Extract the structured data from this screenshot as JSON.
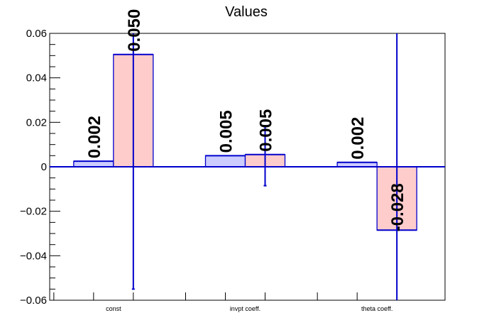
{
  "chart_data": {
    "type": "bar",
    "title": "Values",
    "xlabel": "",
    "ylabel": "",
    "categories": [
      "const",
      "invpt coeff.",
      "theta coeff."
    ],
    "ylim": [
      -0.06,
      0.06
    ],
    "yticks": [
      -0.06,
      -0.04,
      -0.02,
      0,
      0.02,
      0.04,
      0.06
    ],
    "ytick_labels": [
      "−0.06",
      "−0.04",
      "−0.02",
      "0",
      "0.02",
      "0.04",
      "0.06"
    ],
    "series": [
      {
        "values": [
          0.0025,
          0.005,
          0.002
        ],
        "errors": [
          null,
          null,
          null
        ],
        "data_labels": [
          "0.002",
          "0.005",
          "0.002"
        ],
        "fill": "#ccccff",
        "stroke": "#0000cc"
      },
      {
        "values": [
          0.0505,
          0.0055,
          -0.0285
        ],
        "errors": [
          [
            -0.055,
            0.06
          ],
          [
            -0.0085,
            0.018
          ],
          [
            -0.06,
            0.06
          ]
        ],
        "data_labels": [
          "0.050",
          "0.005",
          "-0.028"
        ],
        "fill": "#ffcccc",
        "stroke": "#0000cc"
      }
    ],
    "grid": false,
    "legend": "none"
  }
}
